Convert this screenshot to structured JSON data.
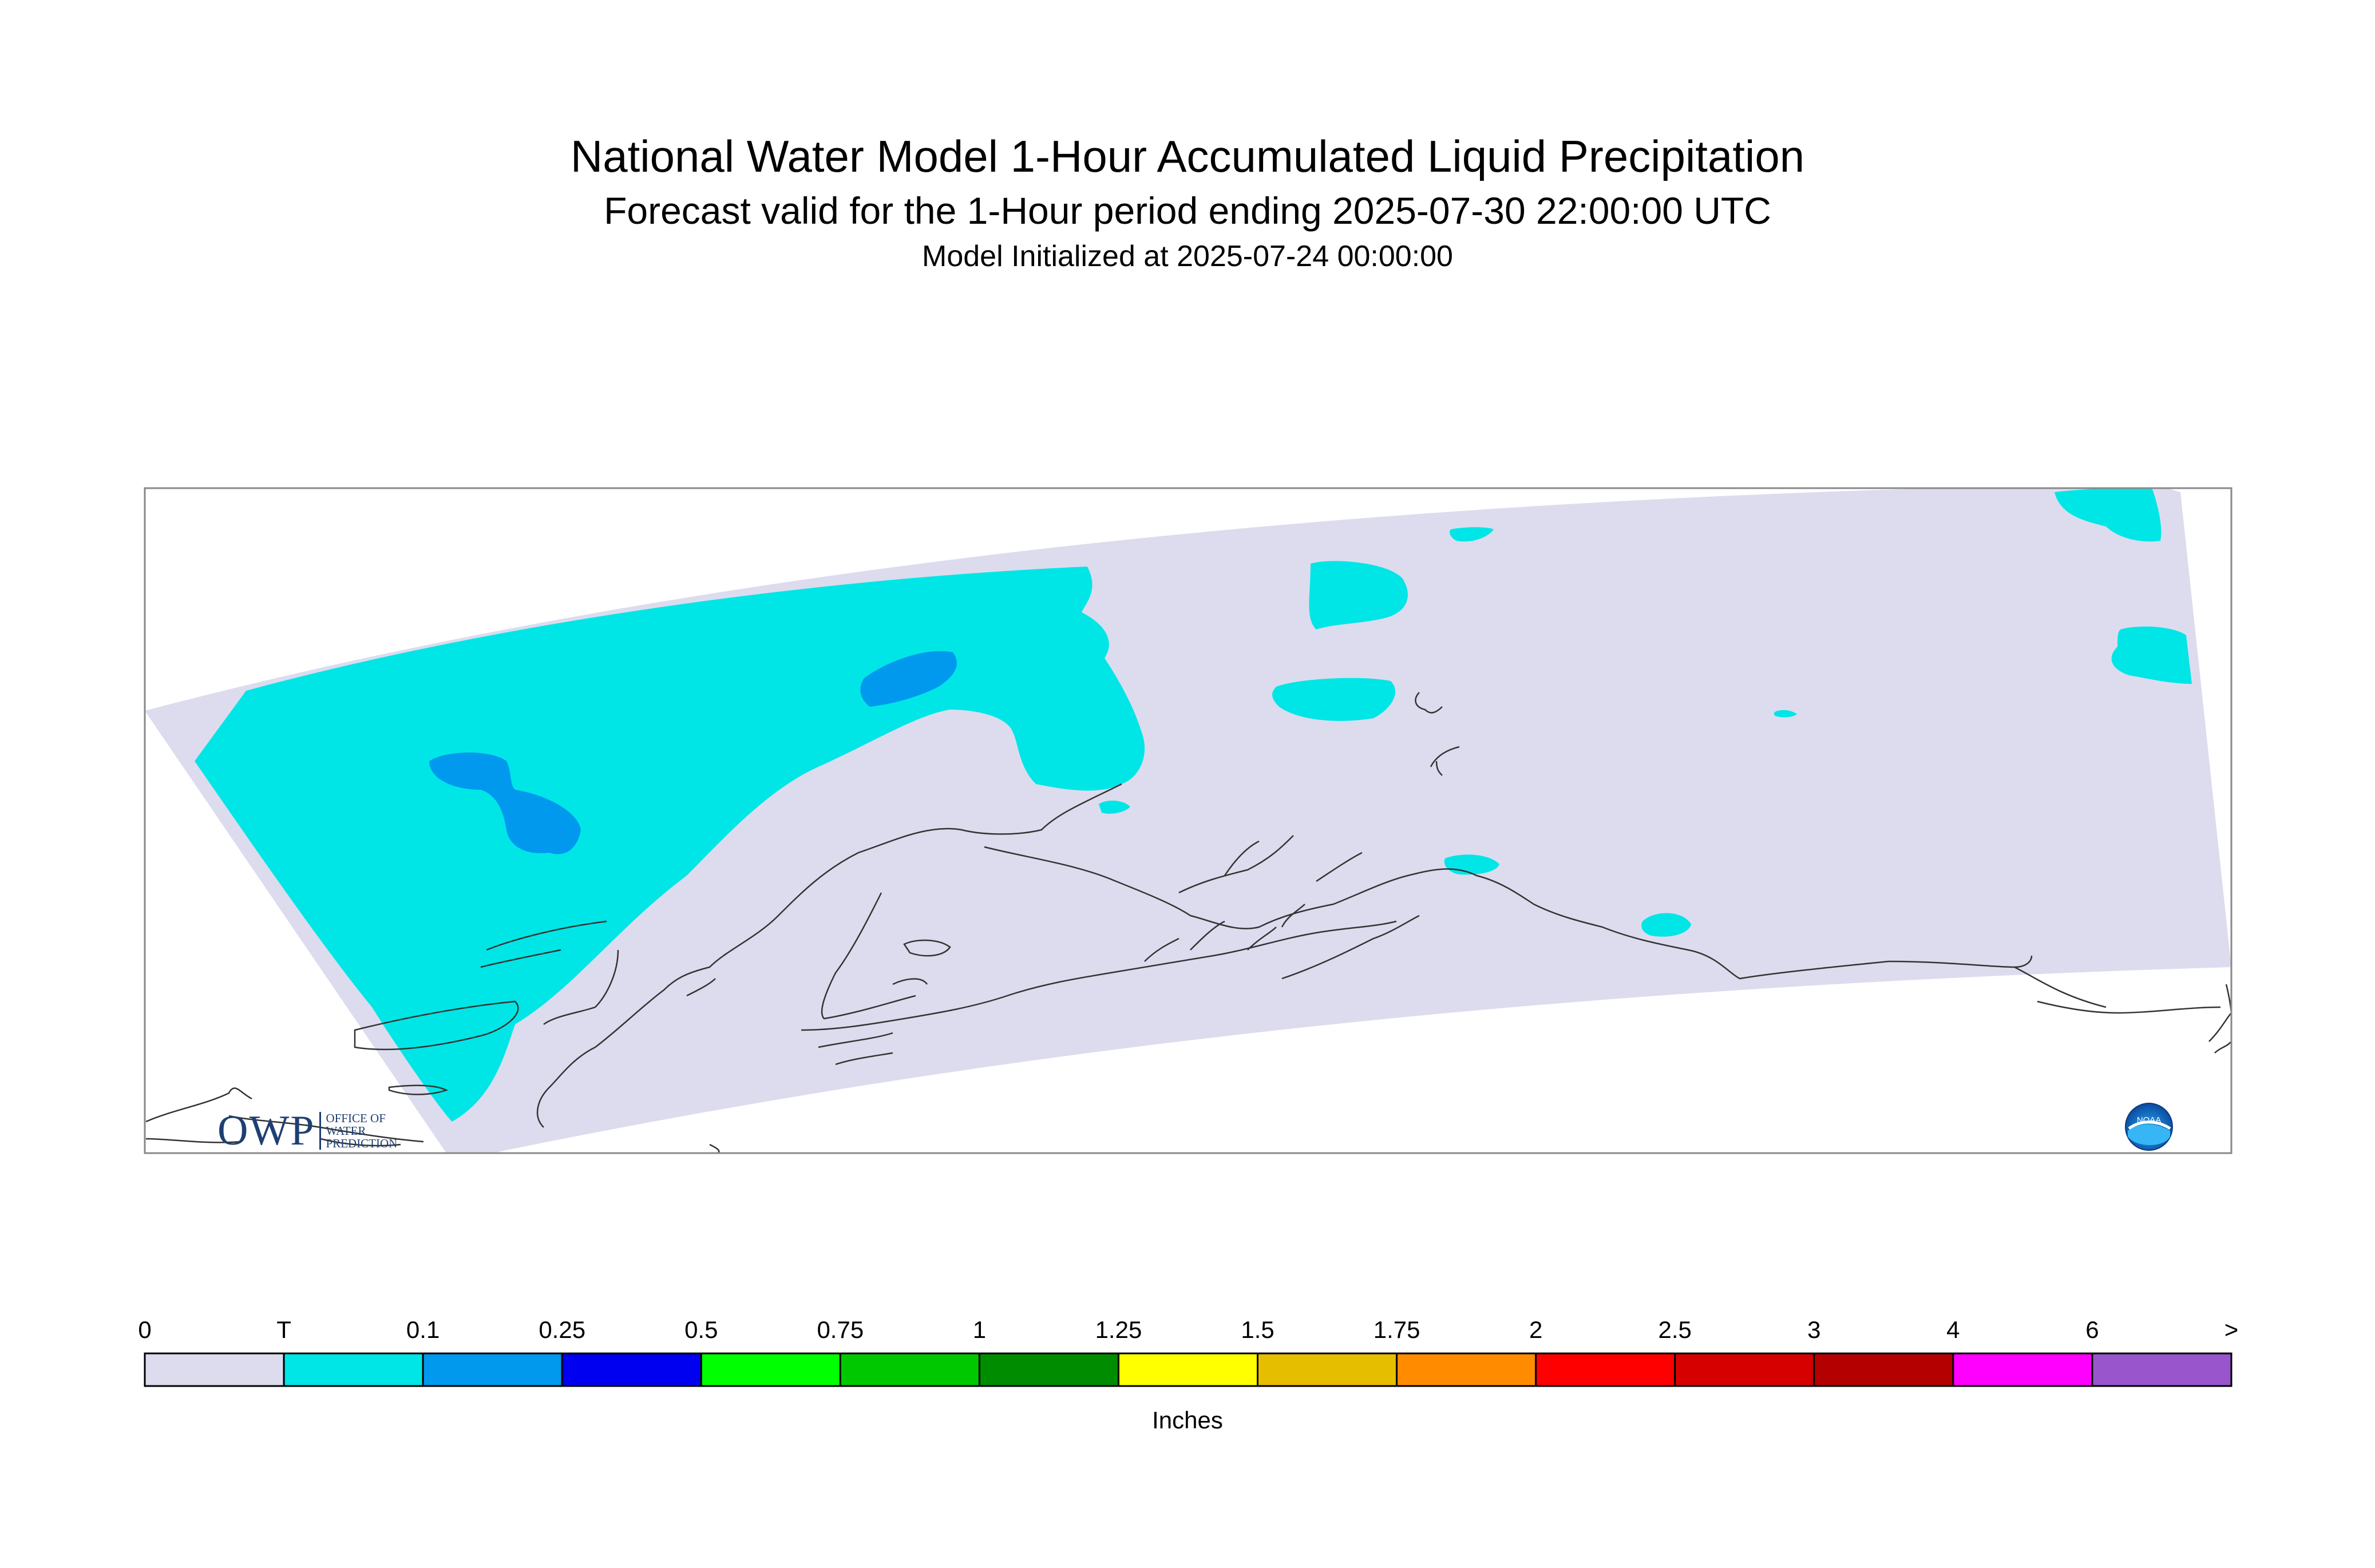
{
  "header": {
    "title": "National Water Model 1-Hour Accumulated Liquid Precipitation",
    "subtitle": "Forecast valid for the 1-Hour period ending 2025-07-30 22:00:00 UTC",
    "init": "Model Initialized at 2025-07-24 00:00:00"
  },
  "logos": {
    "owp_text": "OWP",
    "owp_line1": "OFFICE OF",
    "owp_line2": "WATER",
    "owp_line3": "PREDICTION",
    "noaa_text": "NOAA"
  },
  "colorbar": {
    "units": "Inches",
    "labels": [
      "0",
      "T",
      "0.1",
      "0.25",
      "0.5",
      "0.75",
      "1",
      "1.25",
      "1.5",
      "1.75",
      "2",
      "2.5",
      "3",
      "4",
      "6",
      ">"
    ],
    "colors": [
      "#dcdcee",
      "#00e6e6",
      "#0099ee",
      "#0000f0",
      "#00ff00",
      "#00c800",
      "#008c00",
      "#ffff00",
      "#e6be00",
      "#ff8c00",
      "#ff0000",
      "#d70000",
      "#b40000",
      "#ff00ff",
      "#9955cc"
    ]
  },
  "map_colors": {
    "background_domain": "#dcdcee",
    "trace": "#00e6e6",
    "light": "#0099ee",
    "frame": "#888888",
    "coast": "#333333"
  }
}
